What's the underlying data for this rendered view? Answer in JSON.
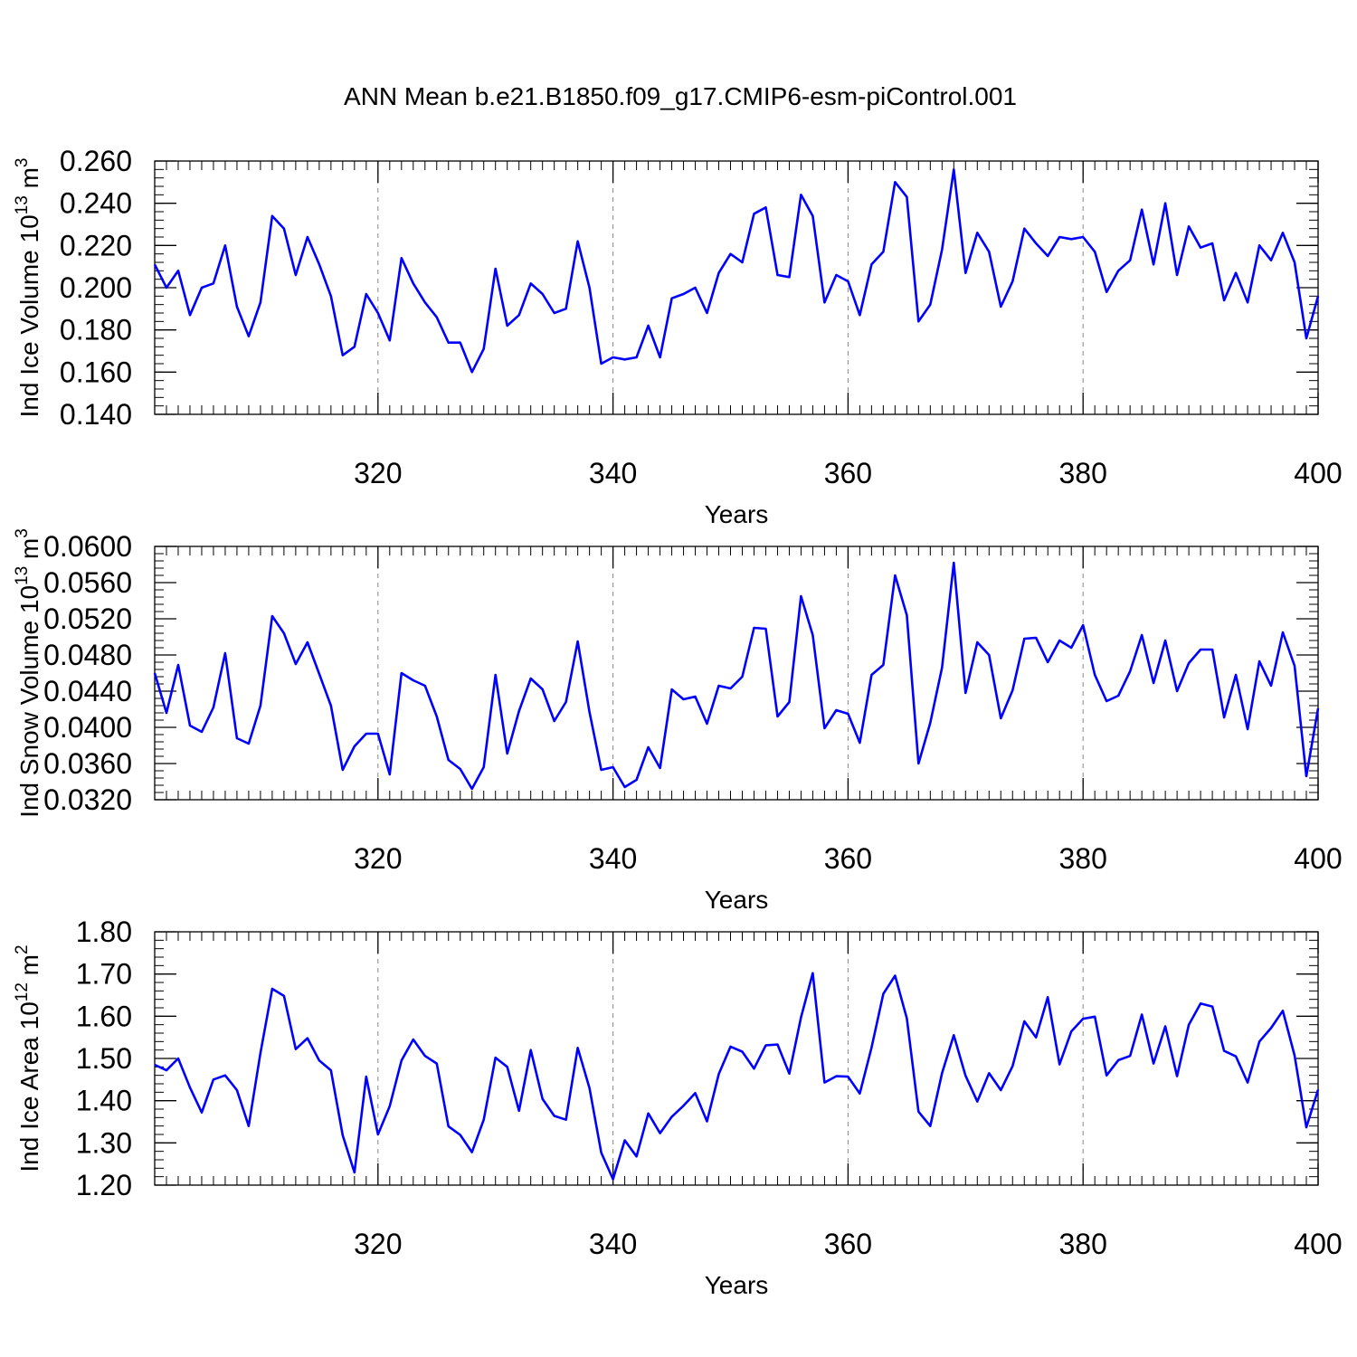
{
  "title": "ANN Mean b.e21.B1850.f09_g17.CMIP6-esm-piControl.001",
  "line_color": "#0000ff",
  "chart_data": [
    {
      "type": "line",
      "ylabel_main": "Ind Ice Volume 10",
      "ylabel_sup": "13",
      "ylabel_unit": " m",
      "ylabel_unit_sup": "3",
      "xlabel": "Years",
      "xlim": [
        301,
        400
      ],
      "ylim": [
        0.14,
        0.26
      ],
      "y_major_ticks": [
        0.14,
        0.16,
        0.18,
        0.2,
        0.22,
        0.24,
        0.26
      ],
      "y_tick_labels": [
        "0.140",
        "0.160",
        "0.180",
        "0.200",
        "0.220",
        "0.240",
        "0.260"
      ],
      "y_minor_step": 0.004,
      "x_tick_labels": [
        "320",
        "340",
        "360",
        "380",
        "400"
      ],
      "x_major_ticks": [
        320,
        340,
        360,
        380,
        400
      ],
      "x_start": 301,
      "values": [
        0.211,
        0.2,
        0.208,
        0.187,
        0.2,
        0.202,
        0.22,
        0.191,
        0.177,
        0.193,
        0.234,
        0.228,
        0.206,
        0.224,
        0.211,
        0.196,
        0.168,
        0.172,
        0.197,
        0.188,
        0.175,
        0.214,
        0.202,
        0.193,
        0.186,
        0.174,
        0.174,
        0.16,
        0.171,
        0.209,
        0.182,
        0.187,
        0.202,
        0.197,
        0.188,
        0.19,
        0.222,
        0.2,
        0.164,
        0.167,
        0.166,
        0.167,
        0.182,
        0.167,
        0.195,
        0.197,
        0.2,
        0.188,
        0.207,
        0.216,
        0.212,
        0.235,
        0.238,
        0.206,
        0.205,
        0.244,
        0.234,
        0.193,
        0.206,
        0.203,
        0.187,
        0.211,
        0.217,
        0.25,
        0.243,
        0.184,
        0.192,
        0.218,
        0.256,
        0.207,
        0.226,
        0.217,
        0.191,
        0.203,
        0.228,
        0.221,
        0.215,
        0.224,
        0.223,
        0.224,
        0.217,
        0.198,
        0.208,
        0.213,
        0.237,
        0.211,
        0.24,
        0.206,
        0.229,
        0.219,
        0.221,
        0.194,
        0.207,
        0.193,
        0.22,
        0.213,
        0.226,
        0.212,
        0.176,
        0.196
      ]
    },
    {
      "type": "line",
      "ylabel_main": "Ind Snow Volume 10",
      "ylabel_sup": "13",
      "ylabel_unit": " m",
      "ylabel_unit_sup": "3",
      "xlabel": "Years",
      "xlim": [
        301,
        400
      ],
      "ylim": [
        0.032,
        0.06
      ],
      "y_major_ticks": [
        0.032,
        0.036,
        0.04,
        0.044,
        0.048,
        0.052,
        0.056,
        0.06
      ],
      "y_tick_labels": [
        "0.0320",
        "0.0360",
        "0.0400",
        "0.0440",
        "0.0480",
        "0.0520",
        "0.0560",
        "0.0600"
      ],
      "y_minor_step": 0.0008,
      "x_tick_labels": [
        "320",
        "340",
        "360",
        "380",
        "400"
      ],
      "x_major_ticks": [
        320,
        340,
        360,
        380,
        400
      ],
      "x_start": 301,
      "values": [
        0.046,
        0.0416,
        0.0469,
        0.0402,
        0.0395,
        0.0422,
        0.0482,
        0.0388,
        0.0382,
        0.0424,
        0.0523,
        0.0504,
        0.047,
        0.0494,
        0.0459,
        0.0424,
        0.0353,
        0.0379,
        0.0393,
        0.0393,
        0.0348,
        0.046,
        0.0452,
        0.0446,
        0.0412,
        0.0364,
        0.0354,
        0.0332,
        0.0356,
        0.0458,
        0.0371,
        0.0418,
        0.0454,
        0.0442,
        0.0407,
        0.0428,
        0.0495,
        0.0417,
        0.0353,
        0.0356,
        0.0334,
        0.0342,
        0.0378,
        0.0355,
        0.0442,
        0.0431,
        0.0434,
        0.0404,
        0.0446,
        0.0443,
        0.0456,
        0.051,
        0.0509,
        0.0412,
        0.0428,
        0.0545,
        0.0502,
        0.0399,
        0.0419,
        0.0415,
        0.0383,
        0.0458,
        0.0469,
        0.0568,
        0.0524,
        0.036,
        0.0405,
        0.0466,
        0.0582,
        0.0438,
        0.0494,
        0.048,
        0.041,
        0.0441,
        0.0498,
        0.0499,
        0.0472,
        0.0496,
        0.0488,
        0.0513,
        0.0458,
        0.0429,
        0.0435,
        0.0462,
        0.0502,
        0.0449,
        0.0496,
        0.044,
        0.0471,
        0.0486,
        0.0486,
        0.0411,
        0.0458,
        0.0398,
        0.0473,
        0.0446,
        0.0505,
        0.0468,
        0.0346,
        0.0421
      ]
    },
    {
      "type": "line",
      "ylabel_main": "Ind Ice Area 10",
      "ylabel_sup": "12",
      "ylabel_unit": " m",
      "ylabel_unit_sup": "2",
      "xlabel": "Years",
      "xlim": [
        301,
        400
      ],
      "ylim": [
        1.2,
        1.8
      ],
      "y_major_ticks": [
        1.2,
        1.3,
        1.4,
        1.5,
        1.6,
        1.7,
        1.8
      ],
      "y_tick_labels": [
        "1.20",
        "1.30",
        "1.40",
        "1.50",
        "1.60",
        "1.70",
        "1.80"
      ],
      "y_minor_step": 0.02,
      "x_tick_labels": [
        "320",
        "340",
        "360",
        "380",
        "400"
      ],
      "x_major_ticks": [
        320,
        340,
        360,
        380,
        400
      ],
      "x_start": 301,
      "values": [
        1.485,
        1.472,
        1.5,
        1.431,
        1.372,
        1.45,
        1.46,
        1.425,
        1.34,
        1.513,
        1.665,
        1.648,
        1.522,
        1.548,
        1.495,
        1.472,
        1.318,
        1.23,
        1.457,
        1.32,
        1.387,
        1.495,
        1.545,
        1.506,
        1.488,
        1.339,
        1.319,
        1.278,
        1.355,
        1.502,
        1.48,
        1.376,
        1.52,
        1.404,
        1.364,
        1.355,
        1.525,
        1.43,
        1.277,
        1.214,
        1.306,
        1.268,
        1.37,
        1.323,
        1.362,
        1.388,
        1.418,
        1.351,
        1.463,
        1.528,
        1.516,
        1.476,
        1.531,
        1.533,
        1.464,
        1.597,
        1.702,
        1.443,
        1.458,
        1.457,
        1.417,
        1.526,
        1.653,
        1.696,
        1.595,
        1.374,
        1.34,
        1.465,
        1.555,
        1.459,
        1.398,
        1.465,
        1.425,
        1.482,
        1.588,
        1.55,
        1.645,
        1.486,
        1.564,
        1.594,
        1.599,
        1.46,
        1.496,
        1.506,
        1.604,
        1.488,
        1.576,
        1.458,
        1.58,
        1.63,
        1.623,
        1.518,
        1.505,
        1.443,
        1.54,
        1.572,
        1.613,
        1.507,
        1.337,
        1.426
      ]
    }
  ]
}
